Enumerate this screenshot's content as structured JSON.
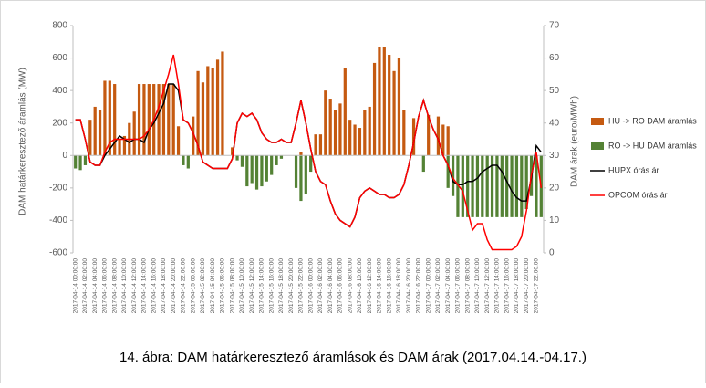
{
  "chart_data": {
    "type": "combo",
    "caption": "14. ábra: DAM határkeresztező áramlások és DAM árak (2017.04.14.-04.17.)",
    "y_label": "DAM határkeresztező áramlás (MW)",
    "y2_label": "DAM árak (euro/MWh)",
    "ylim": [
      -600,
      800
    ],
    "yticks": [
      -600,
      -400,
      -200,
      0,
      200,
      400,
      600,
      800
    ],
    "y2lim": [
      0,
      70
    ],
    "y2ticks": [
      0,
      10,
      20,
      30,
      40,
      50,
      60,
      70
    ],
    "categories": [
      "2017-04-14 00:00:00",
      null,
      "2017-04-14 02:00:00",
      null,
      "2017-04-14 04:00:00",
      null,
      "2017-04-14 06:00:00",
      null,
      "2017-04-14 08:00:00",
      null,
      "2017-04-14 10:00:00",
      null,
      "2017-04-14 12:00:00",
      null,
      "2017-04-14 14:00:00",
      null,
      "2017-04-14 16:00:00",
      null,
      "2017-04-14 18:00:00",
      null,
      "2017-04-14 20:00:00",
      null,
      "2017-04-14 22:00:00",
      null,
      "2017-04-15 00:00:00",
      null,
      "2017-04-15 02:00:00",
      null,
      "2017-04-15 04:00:00",
      null,
      "2017-04-15 06:00:00",
      null,
      "2017-04-15 08:00:00",
      null,
      "2017-04-15 10:00:00",
      null,
      "2017-04-15 12:00:00",
      null,
      "2017-04-15 14:00:00",
      null,
      "2017-04-15 16:00:00",
      null,
      "2017-04-15 18:00:00",
      null,
      "2017-04-15 20:00:00",
      null,
      "2017-04-15 22:00:00",
      null,
      "2017-04-16 00:00:00",
      null,
      "2017-04-16 02:00:00",
      null,
      "2017-04-16 04:00:00",
      null,
      "2017-04-16 06:00:00",
      null,
      "2017-04-16 08:00:00",
      null,
      "2017-04-16 10:00:00",
      null,
      "2017-04-16 12:00:00",
      null,
      "2017-04-16 14:00:00",
      null,
      "2017-04-16 16:00:00",
      null,
      "2017-04-16 18:00:00",
      null,
      "2017-04-16 20:00:00",
      null,
      "2017-04-16 22:00:00",
      null,
      "2017-04-17 00:00:00",
      null,
      "2017-04-17 02:00:00",
      null,
      "2017-04-17 04:00:00",
      null,
      "2017-04-17 06:00:00",
      null,
      "2017-04-17 08:00:00",
      null,
      "2017-04-17 10:00:00",
      null,
      "2017-04-17 12:00:00",
      null,
      "2017-04-17 14:00:00",
      null,
      "2017-04-17 16:00:00",
      null,
      "2017-04-17 18:00:00",
      null,
      "2017-04-17 20:00:00",
      null,
      "2017-04-17 22:00:00",
      null
    ],
    "series": [
      {
        "name": "HU -> RO DAM áramlás",
        "type": "bar",
        "color": "#c55a11",
        "values": [
          0,
          0,
          0,
          220,
          300,
          280,
          460,
          460,
          440,
          100,
          120,
          200,
          270,
          440,
          440,
          440,
          440,
          440,
          440,
          440,
          440,
          180,
          0,
          0,
          240,
          520,
          450,
          550,
          540,
          590,
          640,
          0,
          50,
          0,
          0,
          0,
          0,
          0,
          0,
          0,
          0,
          0,
          0,
          0,
          0,
          0,
          20,
          0,
          0,
          130,
          130,
          400,
          350,
          280,
          320,
          540,
          220,
          190,
          170,
          280,
          300,
          570,
          670,
          670,
          620,
          520,
          600,
          280,
          0,
          230,
          0,
          0,
          250,
          0,
          240,
          190,
          180,
          0,
          0,
          0,
          0,
          0,
          0,
          0,
          0,
          0,
          0,
          0,
          0,
          0,
          0,
          0,
          0,
          0,
          0,
          0
        ]
      },
      {
        "name": "RO -> HU DAM áramlás",
        "type": "bar",
        "color": "#548235",
        "values": [
          -80,
          -90,
          -60,
          0,
          0,
          0,
          0,
          0,
          0,
          0,
          0,
          0,
          0,
          0,
          0,
          0,
          0,
          0,
          0,
          0,
          0,
          0,
          -60,
          -80,
          0,
          0,
          0,
          0,
          0,
          0,
          0,
          0,
          0,
          -30,
          -70,
          -190,
          -170,
          -210,
          -190,
          -160,
          -120,
          -60,
          -20,
          0,
          0,
          -200,
          -280,
          -240,
          -100,
          0,
          0,
          0,
          0,
          0,
          0,
          0,
          0,
          0,
          0,
          0,
          0,
          0,
          0,
          0,
          0,
          0,
          0,
          0,
          0,
          0,
          0,
          -100,
          0,
          0,
          0,
          0,
          -200,
          -250,
          -380,
          -380,
          -380,
          -380,
          -380,
          -380,
          -380,
          -380,
          -380,
          -380,
          -380,
          -380,
          -380,
          -380,
          -330,
          -250,
          -380,
          -380
        ]
      },
      {
        "name": "HUPX órás ár",
        "type": "line",
        "axis": "y2",
        "color": "#000000",
        "values": [
          41,
          41,
          35,
          28,
          27,
          27,
          30,
          32,
          34,
          36,
          35,
          34,
          35,
          35,
          34,
          38,
          40,
          43,
          46,
          52,
          52,
          50,
          41,
          40,
          37,
          33,
          28,
          27,
          26,
          26,
          26,
          26,
          29,
          40,
          43,
          42,
          43,
          41,
          37,
          35,
          34,
          34,
          35,
          34,
          34,
          40,
          47,
          40,
          32,
          25,
          22,
          21,
          16,
          12,
          10,
          9,
          8,
          11,
          17,
          19,
          20,
          19,
          18,
          18,
          17,
          17,
          18,
          21,
          27,
          34,
          42,
          47,
          42,
          38,
          35,
          30,
          27,
          22,
          21,
          21,
          22,
          22,
          23,
          25,
          26,
          27,
          27,
          25,
          22,
          19,
          17,
          16,
          16,
          23,
          33,
          31
        ]
      },
      {
        "name": "OPCOM órás ár",
        "type": "line",
        "axis": "y2",
        "color": "#ff0000",
        "values": [
          41,
          41,
          35,
          28,
          27,
          27,
          31,
          34,
          35,
          35,
          35,
          35,
          35,
          35,
          36,
          38,
          41,
          45,
          50,
          55,
          61,
          52,
          41,
          40,
          37,
          33,
          28,
          27,
          26,
          26,
          26,
          26,
          29,
          40,
          43,
          42,
          43,
          41,
          37,
          35,
          34,
          34,
          35,
          34,
          34,
          40,
          47,
          40,
          32,
          25,
          22,
          21,
          16,
          12,
          10,
          9,
          8,
          11,
          17,
          19,
          20,
          19,
          18,
          18,
          17,
          17,
          18,
          21,
          27,
          34,
          42,
          47,
          42,
          38,
          35,
          30,
          27,
          23,
          21,
          19,
          13,
          7,
          9,
          9,
          4,
          1,
          1,
          1,
          1,
          1,
          2,
          5,
          13,
          24,
          31,
          20
        ]
      }
    ]
  }
}
